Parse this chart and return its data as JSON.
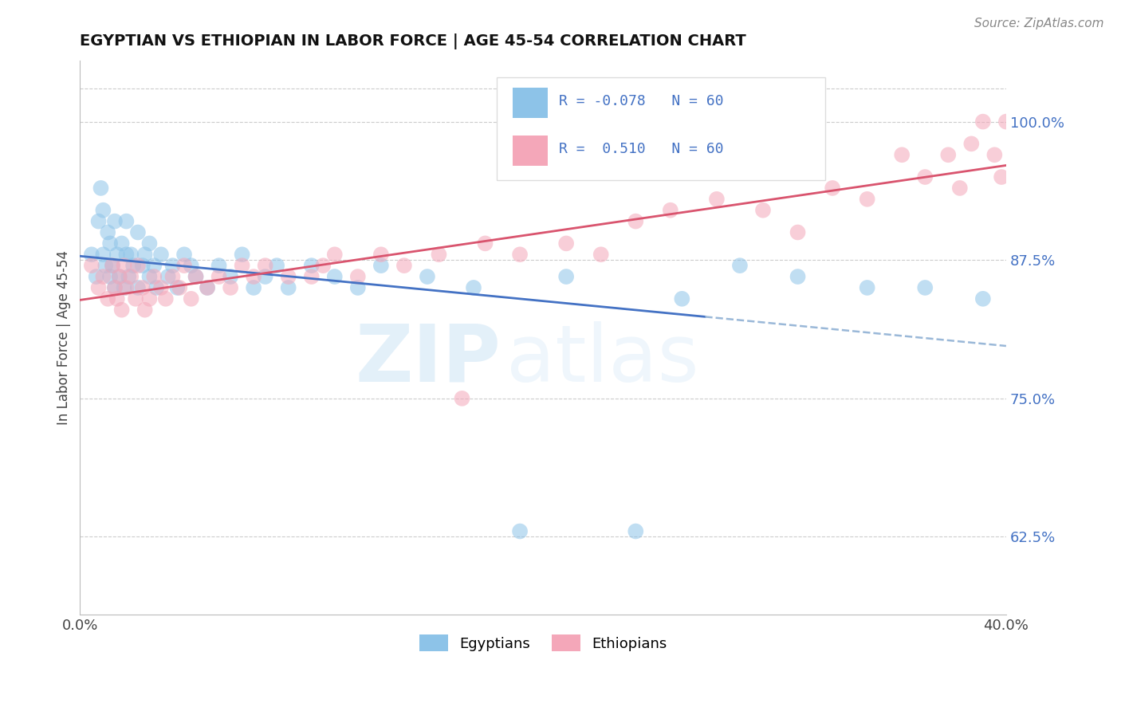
{
  "title": "EGYPTIAN VS ETHIOPIAN IN LABOR FORCE | AGE 45-54 CORRELATION CHART",
  "source_text": "Source: ZipAtlas.com",
  "ylabel": "In Labor Force | Age 45-54",
  "xlim": [
    0.0,
    0.4
  ],
  "ylim": [
    0.555,
    1.055
  ],
  "xtick_vals": [
    0.0,
    0.05,
    0.1,
    0.15,
    0.2,
    0.25,
    0.3,
    0.35,
    0.4
  ],
  "xtick_labels": [
    "0.0%",
    "",
    "",
    "",
    "",
    "",
    "",
    "",
    "40.0%"
  ],
  "ytick_vals_right": [
    0.625,
    0.75,
    0.875,
    1.0
  ],
  "ytick_labels_right": [
    "62.5%",
    "75.0%",
    "87.5%",
    "100.0%"
  ],
  "legend_r_egyptian": "-0.078",
  "legend_n_egyptian": "60",
  "legend_r_ethiopian": "0.510",
  "legend_n_ethiopian": "60",
  "legend_label_egyptian": "Egyptians",
  "legend_label_ethiopian": "Ethiopians",
  "color_egyptian": "#8dc3e8",
  "color_ethiopian": "#f4a7b9",
  "color_egyptian_line": "#4472C4",
  "color_ethiopian_line": "#d9546e",
  "color_egyptian_dash": "#9ab8d8",
  "watermark_zip": "ZIP",
  "watermark_atlas": "atlas",
  "background_color": "#ffffff",
  "grid_color": "#cccccc",
  "eg_line_solid_end": 0.27,
  "eg_x": [
    0.005,
    0.007,
    0.008,
    0.009,
    0.01,
    0.01,
    0.011,
    0.012,
    0.013,
    0.013,
    0.014,
    0.015,
    0.015,
    0.016,
    0.017,
    0.018,
    0.019,
    0.02,
    0.02,
    0.021,
    0.022,
    0.023,
    0.025,
    0.025,
    0.027,
    0.028,
    0.03,
    0.03,
    0.032,
    0.033,
    0.035,
    0.038,
    0.04,
    0.042,
    0.045,
    0.048,
    0.05,
    0.055,
    0.06,
    0.065,
    0.07,
    0.075,
    0.08,
    0.085,
    0.09,
    0.1,
    0.11,
    0.12,
    0.13,
    0.15,
    0.17,
    0.19,
    0.21,
    0.24,
    0.26,
    0.285,
    0.31,
    0.34,
    0.365,
    0.39
  ],
  "eg_y": [
    0.88,
    0.86,
    0.91,
    0.94,
    0.88,
    0.92,
    0.87,
    0.9,
    0.86,
    0.89,
    0.87,
    0.85,
    0.91,
    0.88,
    0.86,
    0.89,
    0.85,
    0.88,
    0.91,
    0.86,
    0.88,
    0.87,
    0.9,
    0.85,
    0.87,
    0.88,
    0.86,
    0.89,
    0.87,
    0.85,
    0.88,
    0.86,
    0.87,
    0.85,
    0.88,
    0.87,
    0.86,
    0.85,
    0.87,
    0.86,
    0.88,
    0.85,
    0.86,
    0.87,
    0.85,
    0.87,
    0.86,
    0.85,
    0.87,
    0.86,
    0.85,
    0.63,
    0.86,
    0.63,
    0.84,
    0.87,
    0.86,
    0.85,
    0.85,
    0.84
  ],
  "et_x": [
    0.005,
    0.008,
    0.01,
    0.012,
    0.014,
    0.015,
    0.016,
    0.017,
    0.018,
    0.019,
    0.02,
    0.022,
    0.024,
    0.025,
    0.027,
    0.028,
    0.03,
    0.032,
    0.035,
    0.037,
    0.04,
    0.043,
    0.045,
    0.048,
    0.05,
    0.055,
    0.06,
    0.065,
    0.07,
    0.075,
    0.08,
    0.09,
    0.1,
    0.105,
    0.11,
    0.12,
    0.13,
    0.14,
    0.155,
    0.165,
    0.175,
    0.19,
    0.21,
    0.225,
    0.24,
    0.255,
    0.275,
    0.295,
    0.31,
    0.325,
    0.34,
    0.355,
    0.365,
    0.375,
    0.38,
    0.385,
    0.39,
    0.395,
    0.398,
    0.4
  ],
  "et_y": [
    0.87,
    0.85,
    0.86,
    0.84,
    0.87,
    0.85,
    0.84,
    0.86,
    0.83,
    0.87,
    0.85,
    0.86,
    0.84,
    0.87,
    0.85,
    0.83,
    0.84,
    0.86,
    0.85,
    0.84,
    0.86,
    0.85,
    0.87,
    0.84,
    0.86,
    0.85,
    0.86,
    0.85,
    0.87,
    0.86,
    0.87,
    0.86,
    0.86,
    0.87,
    0.88,
    0.86,
    0.88,
    0.87,
    0.88,
    0.75,
    0.89,
    0.88,
    0.89,
    0.88,
    0.91,
    0.92,
    0.93,
    0.92,
    0.9,
    0.94,
    0.93,
    0.97,
    0.95,
    0.97,
    0.94,
    0.98,
    1.0,
    0.97,
    0.95,
    1.0
  ]
}
